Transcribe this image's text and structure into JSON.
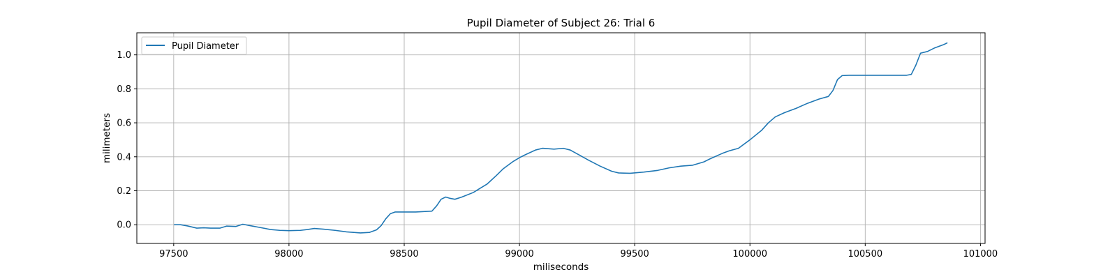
{
  "chart_data": {
    "type": "line",
    "title": "Pupil Diameter of Subject 26: Trial 6",
    "xlabel": "miliseconds",
    "ylabel": "milimeters",
    "xlim": [
      97340,
      101020
    ],
    "ylim": [
      -0.11,
      1.13
    ],
    "xticks": [
      97500,
      98000,
      98500,
      99000,
      99500,
      100000,
      100500,
      101000
    ],
    "xtick_labels": [
      "97500",
      "98000",
      "98500",
      "99000",
      "99500",
      "100000",
      "100500",
      "101000"
    ],
    "yticks": [
      0.0,
      0.2,
      0.4,
      0.6,
      0.8,
      1.0
    ],
    "ytick_labels": [
      "0.0",
      "0.2",
      "0.4",
      "0.6",
      "0.8",
      "1.0"
    ],
    "grid": true,
    "legend_position": "top-left",
    "line_color": "#1f77b4",
    "series": [
      {
        "name": "Pupil Diameter",
        "x": [
          97503,
          97530,
          97560,
          97600,
          97630,
          97660,
          97700,
          97730,
          97770,
          97800,
          97830,
          97870,
          97920,
          97960,
          98000,
          98050,
          98080,
          98110,
          98150,
          98200,
          98250,
          98280,
          98310,
          98350,
          98380,
          98400,
          98420,
          98440,
          98460,
          98500,
          98550,
          98620,
          98640,
          98660,
          98680,
          98700,
          98720,
          98750,
          98800,
          98830,
          98860,
          98900,
          98930,
          98970,
          99000,
          99030,
          99070,
          99100,
          99150,
          99190,
          99220,
          99260,
          99300,
          99350,
          99400,
          99430,
          99480,
          99540,
          99600,
          99650,
          99700,
          99750,
          99800,
          99830,
          99880,
          99910,
          99950,
          100000,
          100050,
          100080,
          100110,
          100150,
          100200,
          100250,
          100300,
          100340,
          100360,
          100380,
          100400,
          100430,
          100500,
          100600,
          100680,
          100700,
          100720,
          100740,
          100770,
          100800,
          100840,
          100855
        ],
        "y": [
          0.0,
          0.0,
          -0.007,
          -0.02,
          -0.018,
          -0.02,
          -0.02,
          -0.008,
          -0.01,
          0.003,
          -0.005,
          -0.015,
          -0.028,
          -0.033,
          -0.035,
          -0.033,
          -0.028,
          -0.022,
          -0.026,
          -0.033,
          -0.042,
          -0.045,
          -0.048,
          -0.045,
          -0.03,
          -0.005,
          0.035,
          0.065,
          0.075,
          0.075,
          0.075,
          0.08,
          0.11,
          0.15,
          0.163,
          0.155,
          0.15,
          0.163,
          0.19,
          0.215,
          0.24,
          0.29,
          0.33,
          0.37,
          0.395,
          0.415,
          0.44,
          0.45,
          0.445,
          0.45,
          0.44,
          0.41,
          0.38,
          0.345,
          0.315,
          0.305,
          0.303,
          0.31,
          0.32,
          0.335,
          0.345,
          0.35,
          0.37,
          0.39,
          0.42,
          0.435,
          0.45,
          0.5,
          0.555,
          0.6,
          0.635,
          0.66,
          0.685,
          0.715,
          0.74,
          0.755,
          0.79,
          0.855,
          0.878,
          0.88,
          0.88,
          0.88,
          0.88,
          0.885,
          0.94,
          1.01,
          1.02,
          1.04,
          1.06,
          1.07
        ]
      }
    ]
  }
}
